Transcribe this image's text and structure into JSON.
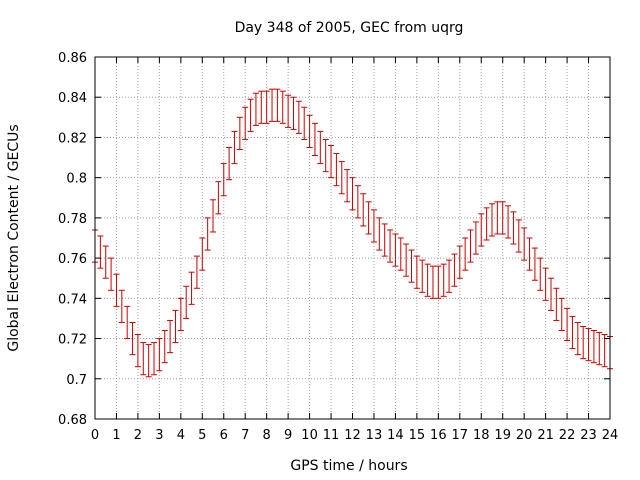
{
  "chart_data": {
    "type": "line",
    "title": "Day 348 of 2005, GEC from uqrg",
    "xlabel": "GPS time / hours",
    "ylabel": "Global Electron Content / GECUs",
    "xlim": [
      0,
      24
    ],
    "ylim": [
      0.68,
      0.86
    ],
    "xticks": [
      "0",
      "1",
      "2",
      "3",
      "4",
      "5",
      "6",
      "7",
      "8",
      "9",
      "10",
      "11",
      "12",
      "13",
      "14",
      "15",
      "16",
      "17",
      "18",
      "19",
      "20",
      "21",
      "22",
      "23",
      "24"
    ],
    "yticks": [
      "0.68",
      "0.7",
      "0.72",
      "0.74",
      "0.76",
      "0.78",
      "0.8",
      "0.82",
      "0.84",
      "0.86"
    ],
    "grid": true,
    "series_color": "#cc0000",
    "error": 0.008,
    "x_step": 0.25,
    "y": [
      0.766,
      0.763,
      0.758,
      0.752,
      0.744,
      0.736,
      0.728,
      0.72,
      0.714,
      0.71,
      0.709,
      0.71,
      0.712,
      0.716,
      0.721,
      0.726,
      0.732,
      0.738,
      0.745,
      0.753,
      0.762,
      0.772,
      0.781,
      0.79,
      0.799,
      0.807,
      0.815,
      0.822,
      0.827,
      0.831,
      0.834,
      0.835,
      0.835,
      0.836,
      0.836,
      0.835,
      0.833,
      0.832,
      0.83,
      0.827,
      0.823,
      0.819,
      0.815,
      0.811,
      0.808,
      0.804,
      0.8,
      0.796,
      0.792,
      0.788,
      0.784,
      0.78,
      0.776,
      0.772,
      0.769,
      0.766,
      0.764,
      0.762,
      0.759,
      0.756,
      0.753,
      0.751,
      0.749,
      0.748,
      0.748,
      0.749,
      0.751,
      0.754,
      0.758,
      0.762,
      0.766,
      0.77,
      0.774,
      0.777,
      0.779,
      0.78,
      0.78,
      0.778,
      0.775,
      0.771,
      0.767,
      0.762,
      0.757,
      0.752,
      0.747,
      0.742,
      0.737,
      0.732,
      0.727,
      0.723,
      0.72,
      0.718,
      0.717,
      0.716,
      0.715,
      0.714,
      0.713
    ]
  }
}
